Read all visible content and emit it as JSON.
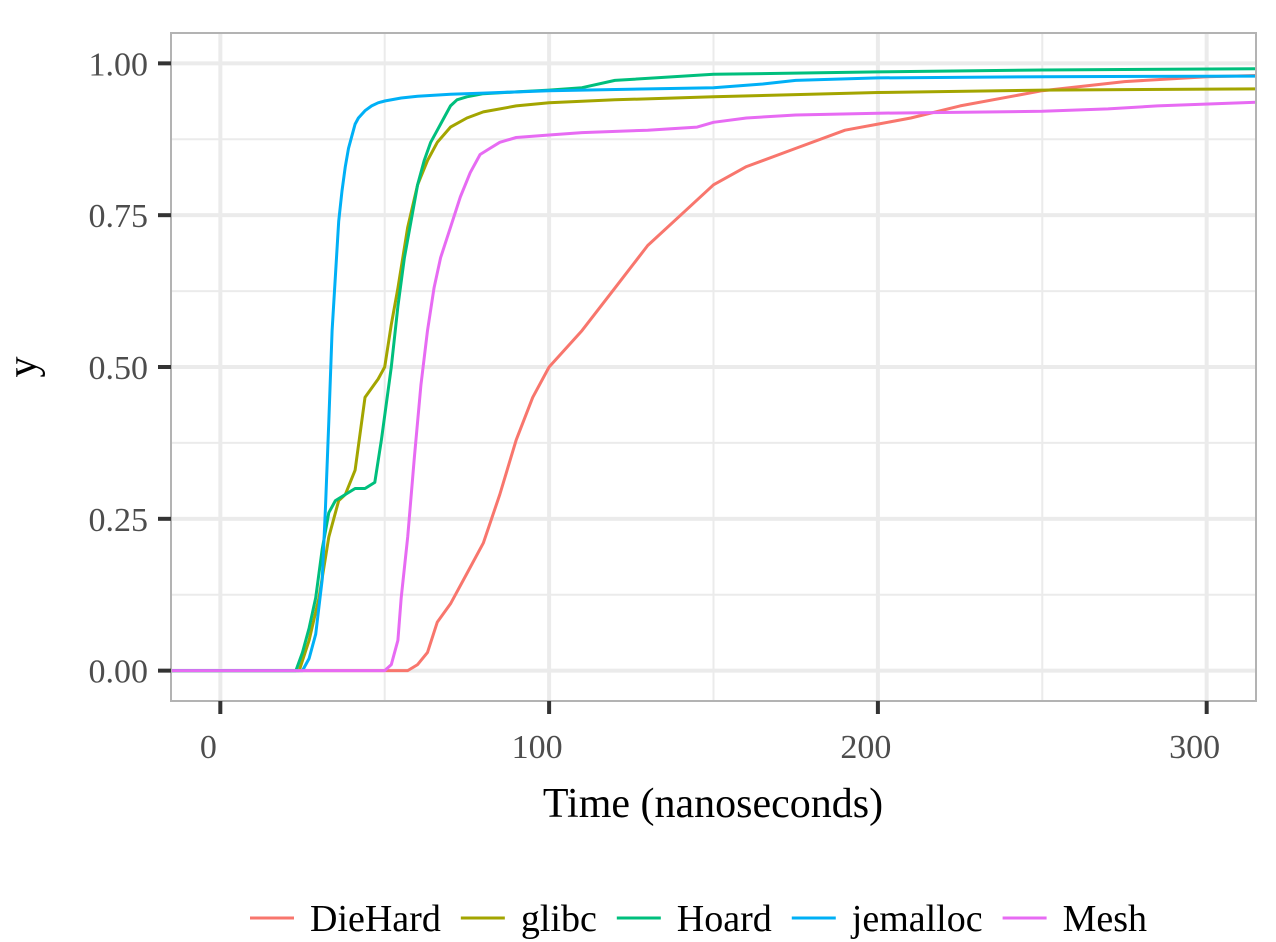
{
  "chart_data": {
    "type": "line",
    "title": "",
    "xlabel": "Time (nanoseconds)",
    "ylabel": "y",
    "xlim": [
      -15,
      315
    ],
    "ylim": [
      -0.05,
      1.05
    ],
    "x_ticks": [
      0,
      100,
      200,
      300
    ],
    "x_tick_labels": [
      "0",
      "100",
      "200",
      "300"
    ],
    "y_ticks": [
      0,
      0.25,
      0.5,
      0.75,
      1.0
    ],
    "y_tick_labels": [
      "0.00",
      "0.25",
      "0.50",
      "0.75",
      "1.00"
    ],
    "grid": true,
    "legend_position": "bottom",
    "series": [
      {
        "name": "DieHard",
        "color": "#F8766D",
        "x": [
          -15,
          57,
          60,
          63,
          66,
          70,
          75,
          80,
          85,
          90,
          95,
          100,
          110,
          120,
          130,
          140,
          150,
          160,
          175,
          190,
          200,
          210,
          225,
          250,
          275,
          300,
          315
        ],
        "y": [
          0,
          0,
          0.01,
          0.03,
          0.08,
          0.11,
          0.16,
          0.21,
          0.29,
          0.38,
          0.45,
          0.5,
          0.56,
          0.63,
          0.7,
          0.75,
          0.8,
          0.83,
          0.86,
          0.89,
          0.9,
          0.91,
          0.93,
          0.955,
          0.97,
          0.978,
          0.98
        ]
      },
      {
        "name": "glibc",
        "color": "#A3A500",
        "x": [
          -15,
          24,
          27,
          30,
          33,
          36,
          38,
          41,
          44,
          48,
          50,
          52,
          54,
          57,
          60,
          63,
          66,
          70,
          75,
          80,
          90,
          100,
          120,
          150,
          200,
          250,
          315
        ],
        "y": [
          0,
          0,
          0.05,
          0.12,
          0.22,
          0.28,
          0.29,
          0.33,
          0.45,
          0.48,
          0.5,
          0.57,
          0.63,
          0.73,
          0.8,
          0.84,
          0.87,
          0.895,
          0.91,
          0.92,
          0.93,
          0.935,
          0.94,
          0.945,
          0.952,
          0.956,
          0.958
        ]
      },
      {
        "name": "Hoard",
        "color": "#00BF7D",
        "x": [
          -15,
          23,
          25,
          27,
          29,
          31,
          33,
          35,
          38,
          41,
          44,
          47,
          49,
          52,
          54,
          56,
          58,
          60,
          62,
          64,
          66,
          68,
          70,
          72,
          75,
          80,
          90,
          100,
          110,
          120,
          150,
          200,
          250,
          315
        ],
        "y": [
          0,
          0,
          0.03,
          0.07,
          0.12,
          0.2,
          0.26,
          0.28,
          0.29,
          0.3,
          0.3,
          0.31,
          0.38,
          0.5,
          0.6,
          0.68,
          0.74,
          0.8,
          0.84,
          0.87,
          0.89,
          0.91,
          0.93,
          0.94,
          0.945,
          0.95,
          0.953,
          0.956,
          0.96,
          0.972,
          0.982,
          0.986,
          0.989,
          0.991
        ]
      },
      {
        "name": "jemalloc",
        "color": "#00B0F6",
        "x": [
          -15,
          25,
          27,
          29,
          31,
          32,
          33,
          34,
          35,
          36,
          37,
          38,
          39,
          40,
          41,
          42,
          44,
          46,
          48,
          50,
          55,
          60,
          70,
          80,
          100,
          150,
          165,
          175,
          200,
          250,
          315
        ],
        "y": [
          0,
          0,
          0.02,
          0.06,
          0.15,
          0.27,
          0.41,
          0.56,
          0.65,
          0.74,
          0.79,
          0.83,
          0.86,
          0.88,
          0.9,
          0.91,
          0.922,
          0.93,
          0.935,
          0.938,
          0.943,
          0.946,
          0.949,
          0.951,
          0.955,
          0.96,
          0.966,
          0.972,
          0.976,
          0.978,
          0.979
        ]
      },
      {
        "name": "Mesh",
        "color": "#E76BF3",
        "x": [
          -15,
          50,
          52,
          54,
          55,
          57,
          59,
          61,
          63,
          65,
          67,
          70,
          73,
          76,
          79,
          82,
          85,
          90,
          100,
          110,
          130,
          145,
          150,
          160,
          175,
          200,
          250,
          270,
          285,
          315
        ],
        "y": [
          0,
          0,
          0.01,
          0.05,
          0.12,
          0.22,
          0.35,
          0.47,
          0.56,
          0.63,
          0.68,
          0.73,
          0.78,
          0.82,
          0.85,
          0.86,
          0.87,
          0.878,
          0.882,
          0.886,
          0.89,
          0.895,
          0.903,
          0.91,
          0.915,
          0.918,
          0.921,
          0.925,
          0.93,
          0.936
        ]
      }
    ]
  }
}
